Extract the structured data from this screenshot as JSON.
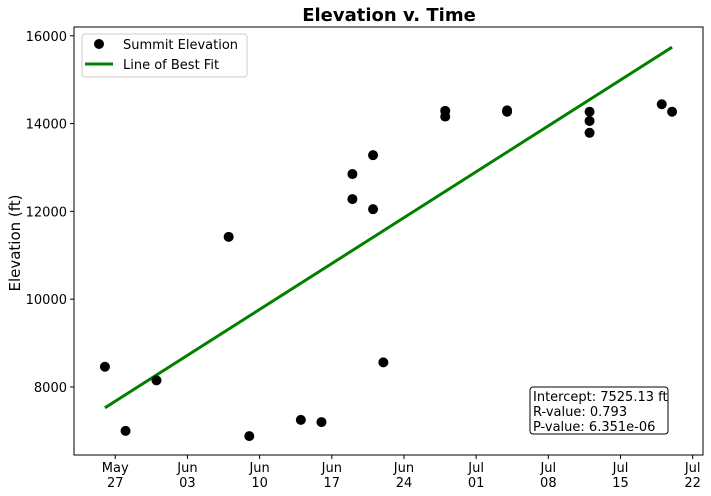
{
  "chart_data": {
    "type": "scatter",
    "title": "Elevation v. Time",
    "xlabel": "",
    "ylabel": "Elevation (ft)",
    "xlim": [
      "2022-05-23",
      "2022-07-23"
    ],
    "ylim": [
      6450,
      16200
    ],
    "x_ticks": [
      {
        "date": "2022-05-27",
        "line1": "May",
        "line2": "27"
      },
      {
        "date": "2022-06-03",
        "line1": "Jun",
        "line2": "03"
      },
      {
        "date": "2022-06-10",
        "line1": "Jun",
        "line2": "10"
      },
      {
        "date": "2022-06-17",
        "line1": "Jun",
        "line2": "17"
      },
      {
        "date": "2022-06-24",
        "line1": "Jun",
        "line2": "24"
      },
      {
        "date": "2022-07-01",
        "line1": "Jul",
        "line2": "01"
      },
      {
        "date": "2022-07-08",
        "line1": "Jul",
        "line2": "08"
      },
      {
        "date": "2022-07-15",
        "line1": "Jul",
        "line2": "15"
      },
      {
        "date": "2022-07-22",
        "line1": "Jul",
        "line2": "22"
      }
    ],
    "y_ticks": [
      8000,
      10000,
      12000,
      14000,
      16000
    ],
    "grid": false,
    "legend": "top-left",
    "series": [
      {
        "name": "Summit Elevation",
        "kind": "scatter",
        "color": "#000000",
        "points": [
          {
            "x": "2022-05-26",
            "y": 8460
          },
          {
            "x": "2022-05-28",
            "y": 7000
          },
          {
            "x": "2022-05-31",
            "y": 8150
          },
          {
            "x": "2022-06-07",
            "y": 11420
          },
          {
            "x": "2022-06-09",
            "y": 6880
          },
          {
            "x": "2022-06-14",
            "y": 7250
          },
          {
            "x": "2022-06-16",
            "y": 7200
          },
          {
            "x": "2022-06-19",
            "y": 12850
          },
          {
            "x": "2022-06-19",
            "y": 12280
          },
          {
            "x": "2022-06-21",
            "y": 13280
          },
          {
            "x": "2022-06-21",
            "y": 12050
          },
          {
            "x": "2022-06-22",
            "y": 8560
          },
          {
            "x": "2022-06-28",
            "y": 14290
          },
          {
            "x": "2022-06-28",
            "y": 14160
          },
          {
            "x": "2022-07-04",
            "y": 14300
          },
          {
            "x": "2022-07-04",
            "y": 14270
          },
          {
            "x": "2022-07-12",
            "y": 14270
          },
          {
            "x": "2022-07-12",
            "y": 14060
          },
          {
            "x": "2022-07-12",
            "y": 13790
          },
          {
            "x": "2022-07-19",
            "y": 14440
          },
          {
            "x": "2022-07-20",
            "y": 14270
          }
        ]
      },
      {
        "name": "Line of Best Fit",
        "kind": "line",
        "color": "#008000",
        "points": [
          {
            "x": "2022-05-26",
            "y": 7525.13
          },
          {
            "x": "2022-07-20",
            "y": 15740
          }
        ]
      }
    ],
    "annotation": [
      "Intercept: 7525.13 ft",
      "R-value: 0.793",
      "P-value: 6.351e-06"
    ]
  }
}
